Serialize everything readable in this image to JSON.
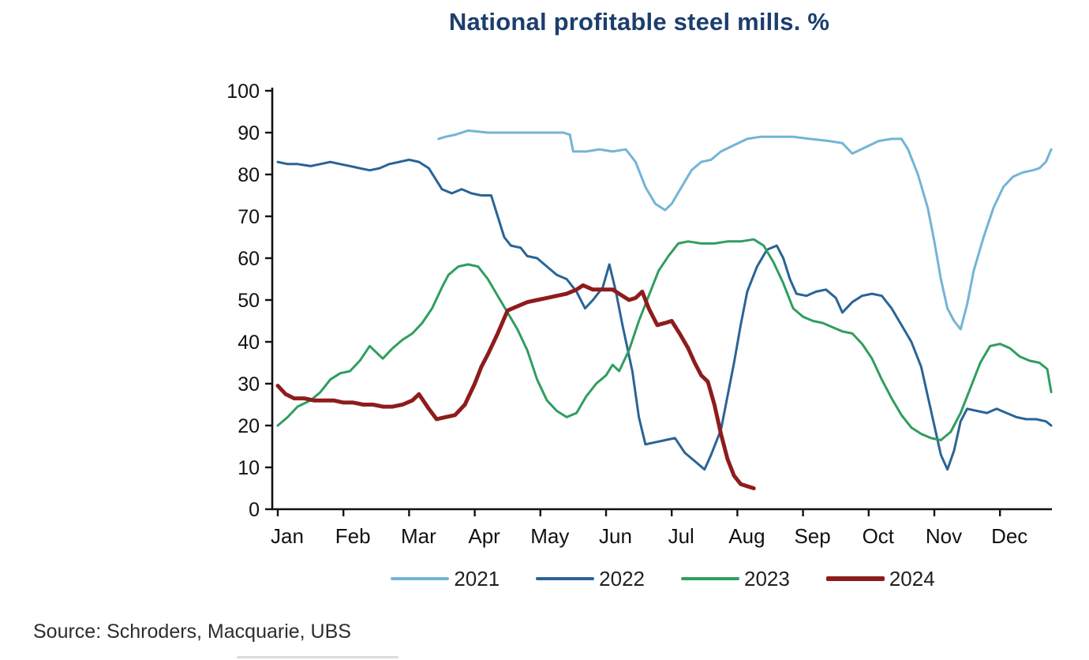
{
  "page": {
    "source": "Source: Schroders, Macquarie, UBS"
  },
  "chart_data": {
    "type": "line",
    "title": "National profitable steel mills. %",
    "xlabel": "",
    "ylabel": "",
    "unit": "%",
    "grid": false,
    "legend_position": "bottom",
    "x_axis": {
      "note": "x values in series are fractional month index, 0 = Jan tick, 11 = Dec tick",
      "labels": [
        "Jan",
        "Feb",
        "Mar",
        "Apr",
        "May",
        "Jun",
        "Jul",
        "Aug",
        "Sep",
        "Oct",
        "Nov",
        "Dec"
      ]
    },
    "y_axis": {
      "min": 0,
      "max": 100,
      "tick_step": 10,
      "tick_labels": [
        "0",
        "10",
        "20",
        "30",
        "40",
        "50",
        "60",
        "70",
        "80",
        "90",
        "100"
      ]
    },
    "axis_color": "#111111",
    "series": [
      {
        "name": "2021",
        "color": "#74b4d6",
        "width": 3,
        "points": [
          [
            2.45,
            88.5
          ],
          [
            2.55,
            89
          ],
          [
            2.7,
            89.5
          ],
          [
            2.9,
            90.5
          ],
          [
            3.2,
            90
          ],
          [
            3.5,
            90
          ],
          [
            3.8,
            90
          ],
          [
            4.1,
            90
          ],
          [
            4.35,
            90
          ],
          [
            4.45,
            89.5
          ],
          [
            4.5,
            85.5
          ],
          [
            4.7,
            85.5
          ],
          [
            4.9,
            86
          ],
          [
            5.1,
            85.5
          ],
          [
            5.3,
            86
          ],
          [
            5.45,
            83
          ],
          [
            5.6,
            77
          ],
          [
            5.75,
            73
          ],
          [
            5.9,
            71.5
          ],
          [
            6.0,
            73
          ],
          [
            6.15,
            77
          ],
          [
            6.3,
            81
          ],
          [
            6.45,
            83
          ],
          [
            6.6,
            83.5
          ],
          [
            6.75,
            85.5
          ],
          [
            6.95,
            87
          ],
          [
            7.15,
            88.5
          ],
          [
            7.35,
            89
          ],
          [
            7.6,
            89
          ],
          [
            7.85,
            89
          ],
          [
            8.1,
            88.5
          ],
          [
            8.4,
            88
          ],
          [
            8.6,
            87.5
          ],
          [
            8.75,
            85
          ],
          [
            8.95,
            86.5
          ],
          [
            9.15,
            88
          ],
          [
            9.35,
            88.5
          ],
          [
            9.5,
            88.5
          ],
          [
            9.6,
            86
          ],
          [
            9.75,
            80
          ],
          [
            9.9,
            72
          ],
          [
            10.0,
            64
          ],
          [
            10.1,
            55
          ],
          [
            10.2,
            48
          ],
          [
            10.3,
            45
          ],
          [
            10.4,
            43
          ],
          [
            10.5,
            49
          ],
          [
            10.6,
            57
          ],
          [
            10.75,
            65
          ],
          [
            10.9,
            72
          ],
          [
            11.05,
            77
          ],
          [
            11.2,
            79.5
          ],
          [
            11.35,
            80.5
          ],
          [
            11.5,
            81
          ],
          [
            11.6,
            81.5
          ],
          [
            11.7,
            83
          ],
          [
            11.78,
            86
          ]
        ]
      },
      {
        "name": "2022",
        "color": "#2a6496",
        "width": 3,
        "points": [
          [
            0,
            83
          ],
          [
            0.15,
            82.5
          ],
          [
            0.3,
            82.5
          ],
          [
            0.5,
            82
          ],
          [
            0.65,
            82.5
          ],
          [
            0.8,
            83
          ],
          [
            0.95,
            82.5
          ],
          [
            1.1,
            82
          ],
          [
            1.25,
            81.5
          ],
          [
            1.4,
            81
          ],
          [
            1.55,
            81.5
          ],
          [
            1.7,
            82.5
          ],
          [
            1.85,
            83
          ],
          [
            2.0,
            83.5
          ],
          [
            2.15,
            83
          ],
          [
            2.3,
            81.5
          ],
          [
            2.4,
            79
          ],
          [
            2.5,
            76.5
          ],
          [
            2.65,
            75.5
          ],
          [
            2.8,
            76.5
          ],
          [
            2.95,
            75.5
          ],
          [
            3.1,
            75
          ],
          [
            3.25,
            75
          ],
          [
            3.35,
            70
          ],
          [
            3.45,
            65
          ],
          [
            3.55,
            63
          ],
          [
            3.7,
            62.5
          ],
          [
            3.8,
            60.5
          ],
          [
            3.95,
            60
          ],
          [
            4.1,
            58
          ],
          [
            4.25,
            56
          ],
          [
            4.4,
            55
          ],
          [
            4.55,
            52
          ],
          [
            4.68,
            48
          ],
          [
            4.8,
            50
          ],
          [
            4.95,
            53
          ],
          [
            5.05,
            58.5
          ],
          [
            5.15,
            52
          ],
          [
            5.25,
            44
          ],
          [
            5.4,
            33
          ],
          [
            5.5,
            22
          ],
          [
            5.6,
            15.5
          ],
          [
            5.75,
            16
          ],
          [
            5.9,
            16.5
          ],
          [
            6.05,
            17
          ],
          [
            6.2,
            13.5
          ],
          [
            6.35,
            11.5
          ],
          [
            6.5,
            9.5
          ],
          [
            6.6,
            13
          ],
          [
            6.75,
            19
          ],
          [
            6.85,
            27
          ],
          [
            6.95,
            35
          ],
          [
            7.05,
            44
          ],
          [
            7.15,
            52
          ],
          [
            7.3,
            58
          ],
          [
            7.45,
            62
          ],
          [
            7.6,
            63
          ],
          [
            7.7,
            60
          ],
          [
            7.8,
            55
          ],
          [
            7.9,
            51.5
          ],
          [
            8.05,
            51
          ],
          [
            8.2,
            52
          ],
          [
            8.35,
            52.5
          ],
          [
            8.5,
            50.5
          ],
          [
            8.6,
            47
          ],
          [
            8.75,
            49.5
          ],
          [
            8.9,
            51
          ],
          [
            9.05,
            51.5
          ],
          [
            9.2,
            51
          ],
          [
            9.35,
            48
          ],
          [
            9.5,
            44
          ],
          [
            9.65,
            40
          ],
          [
            9.8,
            34
          ],
          [
            9.9,
            27
          ],
          [
            10.0,
            20
          ],
          [
            10.1,
            13
          ],
          [
            10.2,
            9.5
          ],
          [
            10.3,
            14
          ],
          [
            10.4,
            21
          ],
          [
            10.5,
            24
          ],
          [
            10.65,
            23.5
          ],
          [
            10.8,
            23
          ],
          [
            10.95,
            24
          ],
          [
            11.1,
            23
          ],
          [
            11.25,
            22
          ],
          [
            11.4,
            21.5
          ],
          [
            11.55,
            21.5
          ],
          [
            11.7,
            21
          ],
          [
            11.78,
            20
          ]
        ]
      },
      {
        "name": "2023",
        "color": "#2f9e5f",
        "width": 3,
        "points": [
          [
            0,
            20
          ],
          [
            0.15,
            22
          ],
          [
            0.3,
            24.5
          ],
          [
            0.5,
            26
          ],
          [
            0.65,
            28
          ],
          [
            0.8,
            31
          ],
          [
            0.95,
            32.5
          ],
          [
            1.1,
            33
          ],
          [
            1.25,
            35.5
          ],
          [
            1.4,
            39
          ],
          [
            1.5,
            37.5
          ],
          [
            1.6,
            36
          ],
          [
            1.75,
            38.5
          ],
          [
            1.9,
            40.5
          ],
          [
            2.05,
            42
          ],
          [
            2.2,
            44.5
          ],
          [
            2.35,
            48
          ],
          [
            2.5,
            53
          ],
          [
            2.6,
            56
          ],
          [
            2.75,
            58
          ],
          [
            2.9,
            58.5
          ],
          [
            3.05,
            58
          ],
          [
            3.2,
            55
          ],
          [
            3.35,
            51
          ],
          [
            3.5,
            47
          ],
          [
            3.65,
            43
          ],
          [
            3.8,
            38
          ],
          [
            3.95,
            31
          ],
          [
            4.1,
            26
          ],
          [
            4.25,
            23.5
          ],
          [
            4.4,
            22
          ],
          [
            4.55,
            23
          ],
          [
            4.7,
            27
          ],
          [
            4.85,
            30
          ],
          [
            5.0,
            32
          ],
          [
            5.1,
            34.5
          ],
          [
            5.2,
            33
          ],
          [
            5.35,
            38
          ],
          [
            5.5,
            45
          ],
          [
            5.65,
            51
          ],
          [
            5.8,
            57
          ],
          [
            5.95,
            60.5
          ],
          [
            6.1,
            63.5
          ],
          [
            6.25,
            64
          ],
          [
            6.45,
            63.5
          ],
          [
            6.65,
            63.5
          ],
          [
            6.85,
            64
          ],
          [
            7.05,
            64
          ],
          [
            7.25,
            64.5
          ],
          [
            7.4,
            63
          ],
          [
            7.55,
            59
          ],
          [
            7.7,
            54
          ],
          [
            7.85,
            48
          ],
          [
            8.0,
            46
          ],
          [
            8.15,
            45
          ],
          [
            8.3,
            44.5
          ],
          [
            8.45,
            43.5
          ],
          [
            8.6,
            42.5
          ],
          [
            8.75,
            42
          ],
          [
            8.9,
            39.5
          ],
          [
            9.05,
            36
          ],
          [
            9.2,
            31
          ],
          [
            9.35,
            26.5
          ],
          [
            9.5,
            22.5
          ],
          [
            9.65,
            19.5
          ],
          [
            9.8,
            18
          ],
          [
            9.95,
            17
          ],
          [
            10.1,
            16.5
          ],
          [
            10.25,
            18.5
          ],
          [
            10.4,
            23
          ],
          [
            10.55,
            29
          ],
          [
            10.7,
            35
          ],
          [
            10.85,
            39
          ],
          [
            11.0,
            39.5
          ],
          [
            11.15,
            38.5
          ],
          [
            11.3,
            36.5
          ],
          [
            11.45,
            35.5
          ],
          [
            11.6,
            35
          ],
          [
            11.72,
            33.5
          ],
          [
            11.78,
            28
          ]
        ]
      },
      {
        "name": "2024",
        "color": "#8e1c1c",
        "width": 5,
        "points": [
          [
            0,
            29.5
          ],
          [
            0.12,
            27.5
          ],
          [
            0.25,
            26.5
          ],
          [
            0.4,
            26.5
          ],
          [
            0.55,
            26
          ],
          [
            0.7,
            26
          ],
          [
            0.85,
            26
          ],
          [
            1.0,
            25.5
          ],
          [
            1.15,
            25.5
          ],
          [
            1.3,
            25
          ],
          [
            1.45,
            25
          ],
          [
            1.6,
            24.5
          ],
          [
            1.75,
            24.5
          ],
          [
            1.9,
            25
          ],
          [
            2.05,
            26
          ],
          [
            2.15,
            27.5
          ],
          [
            2.3,
            24
          ],
          [
            2.42,
            21.5
          ],
          [
            2.55,
            22
          ],
          [
            2.7,
            22.5
          ],
          [
            2.85,
            25
          ],
          [
            3.0,
            30
          ],
          [
            3.1,
            34
          ],
          [
            3.2,
            37
          ],
          [
            3.35,
            42
          ],
          [
            3.5,
            47.5
          ],
          [
            3.65,
            48.5
          ],
          [
            3.8,
            49.5
          ],
          [
            3.95,
            50
          ],
          [
            4.1,
            50.5
          ],
          [
            4.25,
            51
          ],
          [
            4.4,
            51.5
          ],
          [
            4.55,
            52.5
          ],
          [
            4.65,
            53.5
          ],
          [
            4.8,
            52.5
          ],
          [
            4.95,
            52.5
          ],
          [
            5.1,
            52.5
          ],
          [
            5.25,
            51
          ],
          [
            5.35,
            50
          ],
          [
            5.45,
            50.5
          ],
          [
            5.55,
            52
          ],
          [
            5.65,
            48
          ],
          [
            5.78,
            44
          ],
          [
            5.9,
            44.5
          ],
          [
            6.0,
            45
          ],
          [
            6.12,
            42
          ],
          [
            6.25,
            38.5
          ],
          [
            6.35,
            35
          ],
          [
            6.45,
            32
          ],
          [
            6.55,
            30.5
          ],
          [
            6.65,
            25
          ],
          [
            6.75,
            18
          ],
          [
            6.85,
            12
          ],
          [
            6.95,
            8
          ],
          [
            7.05,
            6
          ],
          [
            7.15,
            5.5
          ],
          [
            7.25,
            5
          ]
        ]
      }
    ]
  }
}
